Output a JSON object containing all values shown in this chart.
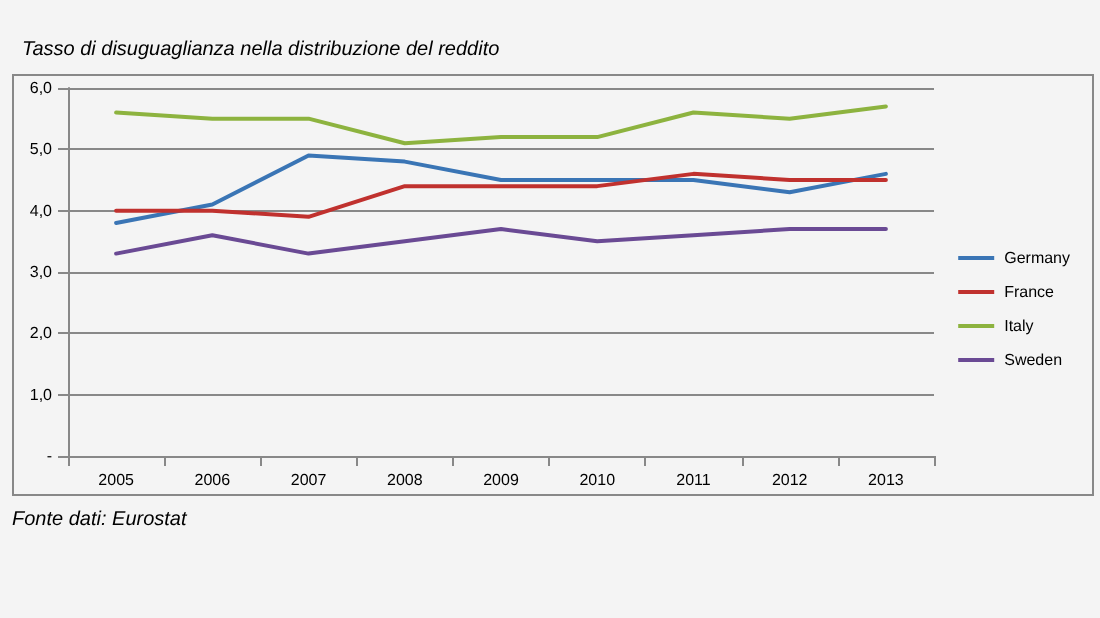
{
  "chart_data": {
    "type": "line",
    "title": "Tasso di disuguaglianza nella distribuzione del reddito",
    "annotations": [
      "Fonte dati: Eurostat"
    ],
    "categories": [
      "2005",
      "2006",
      "2007",
      "2008",
      "2009",
      "2010",
      "2011",
      "2012",
      "2013"
    ],
    "series": [
      {
        "name": "Germany",
        "color": "#3a75b5",
        "values": [
          3.8,
          4.1,
          4.9,
          4.8,
          4.5,
          4.5,
          4.5,
          4.3,
          4.6
        ]
      },
      {
        "name": "France",
        "color": "#c0312e",
        "values": [
          4.0,
          4.0,
          3.9,
          4.4,
          4.4,
          4.4,
          4.6,
          4.5,
          4.5
        ]
      },
      {
        "name": "Italy",
        "color": "#8db33f",
        "values": [
          5.6,
          5.5,
          5.5,
          5.1,
          5.2,
          5.2,
          5.6,
          5.5,
          5.7
        ]
      },
      {
        "name": "Sweden",
        "color": "#6a4a94",
        "values": [
          3.3,
          3.6,
          3.3,
          3.5,
          3.7,
          3.5,
          3.6,
          3.7,
          3.7
        ]
      }
    ],
    "ylim": [
      0,
      6
    ],
    "yticks": [
      {
        "value": 0,
        "label": "-"
      },
      {
        "value": 1,
        "label": "1,0"
      },
      {
        "value": 2,
        "label": "2,0"
      },
      {
        "value": 3,
        "label": "3,0"
      },
      {
        "value": 4,
        "label": "4,0"
      },
      {
        "value": 5,
        "label": "5,0"
      },
      {
        "value": 6,
        "label": "6,0"
      }
    ],
    "grid": "y",
    "legend": "right",
    "marker": "none",
    "line_style": "solid"
  }
}
